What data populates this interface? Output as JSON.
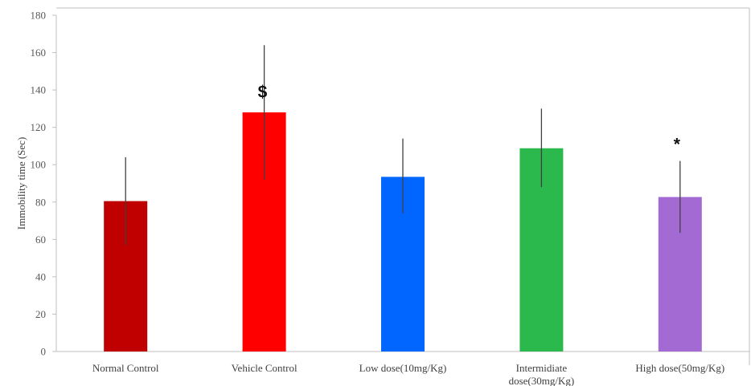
{
  "chart_data": {
    "type": "bar",
    "title": "",
    "xlabel": "",
    "ylabel": "Immobility time (Sec)",
    "ylim": [
      0,
      180
    ],
    "yticks": [
      0,
      20,
      40,
      60,
      80,
      100,
      120,
      140,
      160,
      180
    ],
    "grid": false,
    "categories": [
      [
        "Normal Control"
      ],
      [
        "Vehicle Control"
      ],
      [
        "Low dose(10mg/Kg)"
      ],
      [
        "Intermidiate",
        "dose(30mg/Kg)"
      ],
      [
        "High dose(50mg/Kg)"
      ]
    ],
    "values": [
      80.5,
      128,
      93.5,
      108.8,
      82.7
    ],
    "error_low": [
      57,
      92,
      74,
      88,
      63.5
    ],
    "error_high": [
      104,
      164,
      114,
      130,
      102
    ],
    "colors": [
      "#c00000",
      "#ff0000",
      "#0066ff",
      "#2bb84d",
      "#a36ad4"
    ],
    "annotations": [
      {
        "text": "$",
        "category_index": 1,
        "y": 136
      },
      {
        "text": "*",
        "category_index": 4,
        "y": 108
      }
    ]
  }
}
